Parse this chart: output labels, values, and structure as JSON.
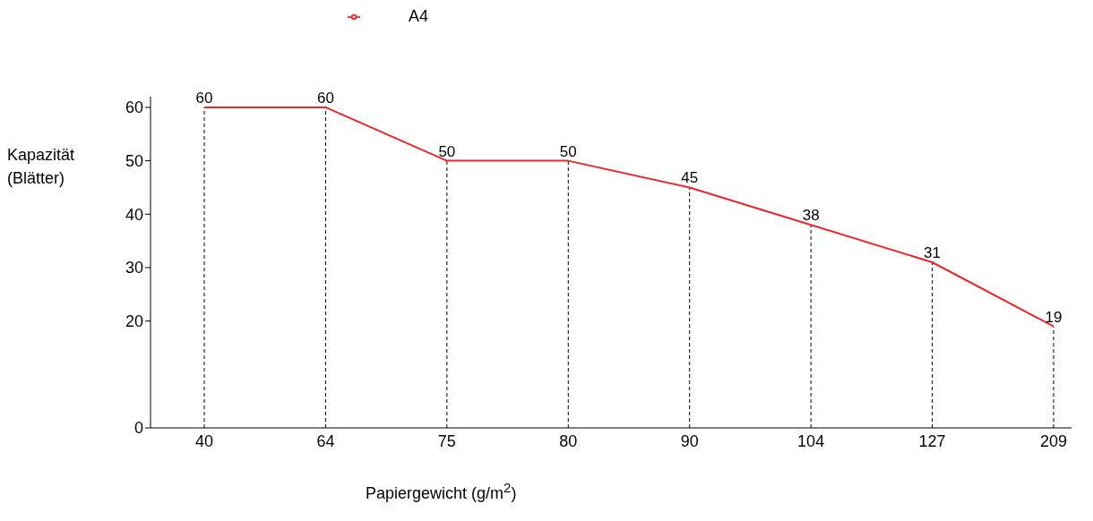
{
  "chart_data": {
    "type": "line",
    "xlabel": "Papiergewicht (g/m$^{2}$)",
    "ylabel": "Kapazität (Blätter)",
    "categories": [
      "40",
      "64",
      "75",
      "80",
      "90",
      "104",
      "127",
      "209"
    ],
    "series": [
      {
        "name": "A4",
        "color": "#e8262b",
        "values": [
          60,
          60,
          50,
          50,
          45,
          38,
          31,
          19
        ]
      }
    ],
    "ylim": [
      0,
      62
    ],
    "yticks": [
      0,
      20,
      30,
      40,
      50,
      60
    ],
    "ref_lines": [
      {
        "axis": "x",
        "value": "40",
        "color": "#000000",
        "line_style": "dashed"
      },
      {
        "axis": "x",
        "value": "64",
        "color": "#000000",
        "line_style": "dashed"
      },
      {
        "axis": "x",
        "value": "75",
        "color": "#000000",
        "line_style": "dashed"
      },
      {
        "axis": "x",
        "value": "80",
        "color": "#000000",
        "line_style": "dashed"
      },
      {
        "axis": "x",
        "value": "90",
        "color": "#000000",
        "line_style": "dashed"
      },
      {
        "axis": "x",
        "value": "104",
        "color": "#000000",
        "line_style": "dashed"
      },
      {
        "axis": "x",
        "value": "127",
        "color": "#000000",
        "line_style": "dashed"
      },
      {
        "axis": "x",
        "value": "209",
        "color": "#000000",
        "line_style": "dashed"
      }
    ],
    "data_labels": true,
    "grid": false,
    "legend": "top left",
    "marker": "none",
    "line_style": "solid"
  }
}
